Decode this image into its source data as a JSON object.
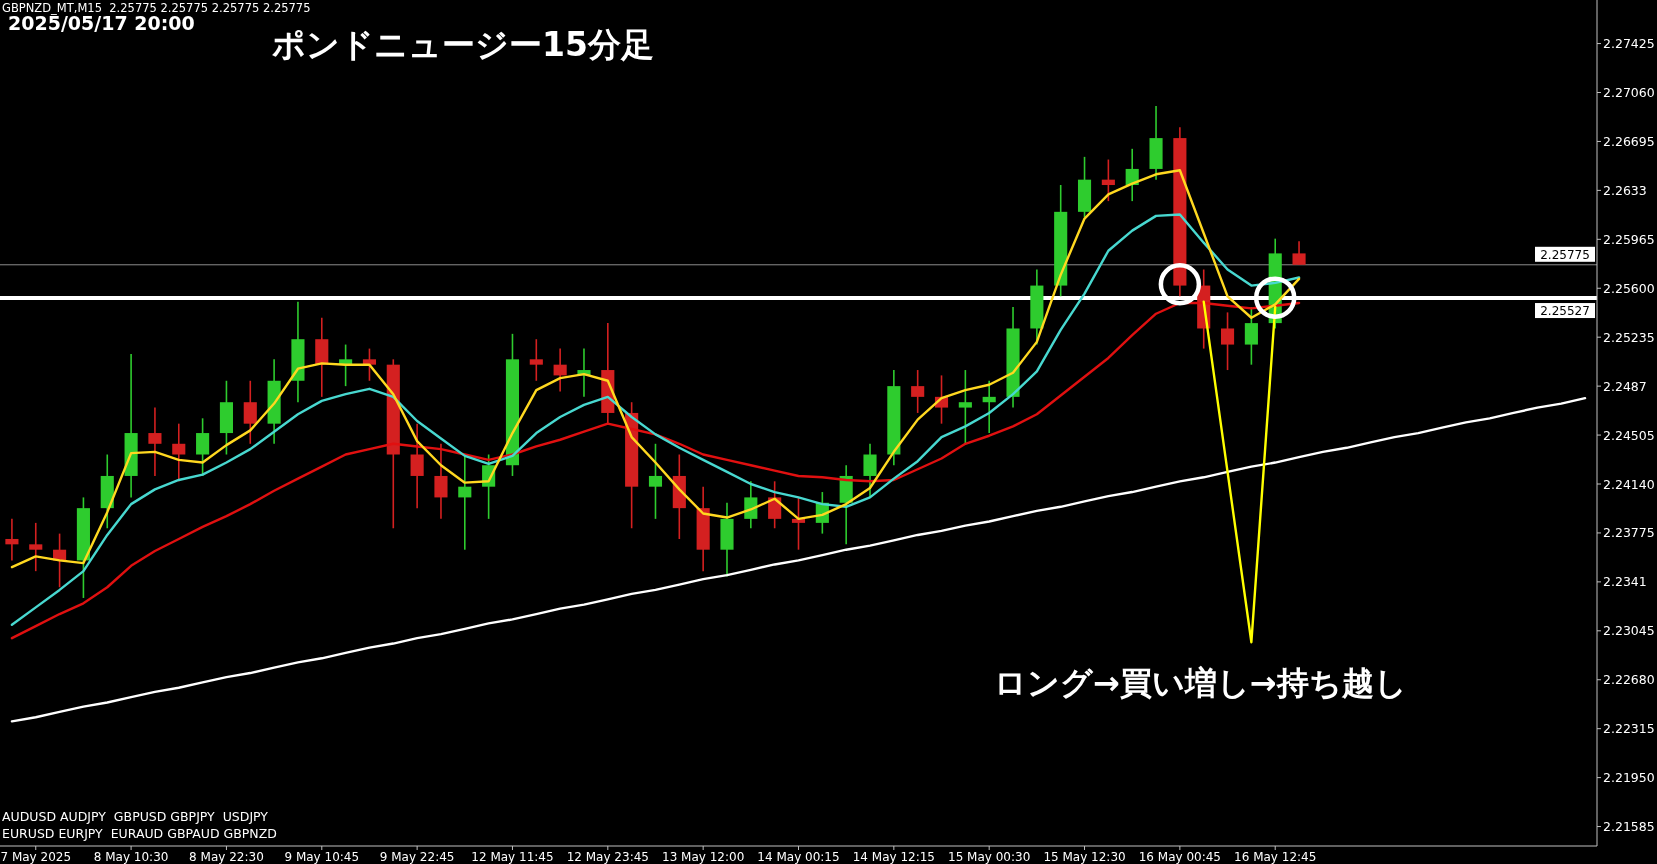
{
  "chart_data": {
    "type": "candlestick",
    "title": "ポンドニュージー15分足",
    "annotations": [
      "GBPNZD_MT,M15  2.25775 2.25775 2.25775 2.25775",
      "2025/05/17 20:00",
      "ロング→買い増し→持ち越し",
      "AUDUSD AUDJPY  GBPUSD GBPJPY  USDJPY",
      "EURUSD EURJPY  EURAUD GBPAUD GBPNZD"
    ],
    "ylim": [
      2.2144,
      2.2775
    ],
    "yticks": [
      2.21585,
      {
        "value": 2.2195,
        "label": "2.21950"
      },
      2.22315,
      {
        "value": 2.2268,
        "label": "2.22680"
      },
      2.23045,
      2.2341,
      2.23775,
      {
        "value": 2.2414,
        "label": "2.24140"
      },
      2.24505,
      2.2487,
      2.25235,
      {
        "value": 2.256,
        "label": "2.25600"
      },
      2.25965,
      2.2633,
      2.26695,
      {
        "value": 2.2706,
        "label": "2.27060"
      },
      2.27425
    ],
    "ref_lines": [
      {
        "axis": "y",
        "value": 2.25527,
        "label": "2.25527",
        "color": "#ffffff"
      },
      {
        "axis": "y",
        "value": 2.25775,
        "label": "2.25775",
        "color": "#8c8c8c"
      }
    ],
    "categories": [
      null,
      "7 May 2025",
      null,
      null,
      null,
      "8 May 10:30",
      null,
      null,
      null,
      "8 May 22:30",
      null,
      null,
      null,
      "9 May 10:45",
      null,
      null,
      null,
      "9 May 22:45",
      null,
      null,
      null,
      "12 May 11:45",
      null,
      null,
      null,
      "12 May 23:45",
      null,
      null,
      null,
      "13 May 12:00",
      null,
      null,
      null,
      "14 May 00:15",
      null,
      null,
      null,
      "14 May 12:15",
      null,
      null,
      null,
      "15 May 00:30",
      null,
      null,
      null,
      "15 May 12:30",
      null,
      null,
      null,
      "16 May 00:45",
      null,
      null,
      null,
      "16 May 12:45",
      null,
      null,
      null,
      null,
      null,
      null,
      null,
      null,
      null,
      null,
      null,
      null,
      null
    ],
    "ohlc": [
      [
        2.2373,
        2.2388,
        2.2357,
        2.2369
      ],
      [
        2.2369,
        2.2385,
        2.2349,
        2.2365
      ],
      [
        2.2365,
        2.2377,
        2.2337,
        2.2357
      ],
      [
        2.2357,
        2.2404,
        2.2329,
        2.2396
      ],
      [
        2.2396,
        2.2436,
        2.2381,
        2.242
      ],
      [
        2.242,
        2.2511,
        2.2404,
        2.2452
      ],
      [
        2.2452,
        2.2471,
        2.242,
        2.2444
      ],
      [
        2.2444,
        2.2459,
        2.2416,
        2.2436
      ],
      [
        2.2436,
        2.2463,
        2.242,
        2.2452
      ],
      [
        2.2452,
        2.2491,
        2.2436,
        2.2475
      ],
      [
        2.2475,
        2.2491,
        2.2444,
        2.2459
      ],
      [
        2.2459,
        2.2507,
        2.2444,
        2.2491
      ],
      [
        2.2491,
        2.255,
        2.2475,
        2.2522
      ],
      [
        2.2522,
        2.2538,
        2.2479,
        2.2503
      ],
      [
        2.2503,
        2.2518,
        2.2487,
        2.2507
      ],
      [
        2.2507,
        2.2515,
        2.2491,
        2.2503
      ],
      [
        2.2503,
        2.2507,
        2.2381,
        2.2436
      ],
      [
        2.2436,
        2.2459,
        2.2396,
        2.242
      ],
      [
        2.242,
        2.2444,
        2.2388,
        2.2404
      ],
      [
        2.2404,
        2.2436,
        2.2365,
        2.2412
      ],
      [
        2.2412,
        2.2436,
        2.2388,
        2.2428
      ],
      [
        2.2428,
        2.2526,
        2.242,
        2.2507
      ],
      [
        2.2507,
        2.2522,
        2.2491,
        2.2503
      ],
      [
        2.2503,
        2.2515,
        2.2483,
        2.2495
      ],
      [
        2.2495,
        2.2515,
        2.2479,
        2.2499
      ],
      [
        2.2499,
        2.2534,
        2.2459,
        2.2467
      ],
      [
        2.2467,
        2.2475,
        2.2381,
        2.2412
      ],
      [
        2.2412,
        2.2444,
        2.2388,
        2.242
      ],
      [
        2.242,
        2.2436,
        2.2373,
        2.2396
      ],
      [
        2.2396,
        2.2412,
        2.2349,
        2.2365
      ],
      [
        2.2365,
        2.24,
        2.2345,
        2.2388
      ],
      [
        2.2388,
        2.2416,
        2.2381,
        2.2404
      ],
      [
        2.2404,
        2.2416,
        2.2381,
        2.2388
      ],
      [
        2.2388,
        2.2404,
        2.2365,
        2.2385
      ],
      [
        2.2385,
        2.2408,
        2.2377,
        2.24
      ],
      [
        2.24,
        2.2428,
        2.2369,
        2.242
      ],
      [
        2.242,
        2.2444,
        2.2404,
        2.2436
      ],
      [
        2.2436,
        2.2499,
        2.2428,
        2.2487
      ],
      [
        2.2487,
        2.2499,
        2.2467,
        2.2479
      ],
      [
        2.2479,
        2.2495,
        2.2459,
        2.2471
      ],
      [
        2.2471,
        2.2499,
        2.2444,
        2.2475
      ],
      [
        2.2475,
        2.2491,
        2.2452,
        2.2479
      ],
      [
        2.2479,
        2.2546,
        2.2471,
        2.253
      ],
      [
        2.253,
        2.2574,
        2.2518,
        2.2562
      ],
      [
        2.2562,
        2.2637,
        2.2554,
        2.2617
      ],
      [
        2.2617,
        2.2658,
        2.2613,
        2.2641
      ],
      [
        2.2641,
        2.2656,
        2.2625,
        2.2637
      ],
      [
        2.2637,
        2.2664,
        2.2625,
        2.2649
      ],
      [
        2.2649,
        2.2696,
        2.2641,
        2.2672
      ],
      [
        2.2672,
        2.268,
        2.2554,
        2.2562
      ],
      [
        2.2562,
        2.2574,
        2.2515,
        2.253
      ],
      [
        2.253,
        2.2542,
        2.2499,
        2.2518
      ],
      [
        2.2518,
        2.2546,
        2.2503,
        2.2534
      ],
      [
        2.2534,
        2.2597,
        2.253,
        2.2586
      ],
      [
        2.2586,
        2.2595,
        2.25775,
        2.25775
      ],
      null,
      null,
      null,
      null,
      null,
      null,
      null,
      null,
      null,
      null,
      null,
      null
    ],
    "colors": [
      "#d42020",
      "#d42020",
      "#d42020",
      "#2ecc2e",
      "#2ecc2e",
      "#2ecc2e",
      "#d42020",
      "#d42020",
      "#2ecc2e",
      "#2ecc2e",
      "#d42020",
      "#2ecc2e",
      "#2ecc2e",
      "#d42020",
      "#2ecc2e",
      "#d42020",
      "#d42020",
      "#d42020",
      "#d42020",
      "#2ecc2e",
      "#2ecc2e",
      "#2ecc2e",
      "#d42020",
      "#d42020",
      "#2ecc2e",
      "#d42020",
      "#d42020",
      "#2ecc2e",
      "#d42020",
      "#d42020",
      "#2ecc2e",
      "#2ecc2e",
      "#d42020",
      "#d42020",
      "#2ecc2e",
      "#2ecc2e",
      "#2ecc2e",
      "#2ecc2e",
      "#d42020",
      "#d42020",
      "#2ecc2e",
      "#2ecc2e",
      "#2ecc2e",
      "#2ecc2e",
      "#2ecc2e",
      "#2ecc2e",
      "#d42020",
      "#2ecc2e",
      "#2ecc2e",
      "#d42020",
      "#d42020",
      "#d42020",
      "#2ecc2e",
      "#2ecc2e",
      "#d42020",
      null,
      null,
      null,
      null,
      null,
      null,
      null,
      null,
      null,
      null,
      null,
      null
    ],
    "series": [
      {
        "type": "line",
        "color": "#e01010",
        "values": [
          2.2299,
          2.2308,
          2.2317,
          2.2325,
          2.2337,
          2.2353,
          2.2364,
          2.2373,
          2.2382,
          2.239,
          2.2399,
          2.2409,
          2.2418,
          2.2427,
          2.2436,
          2.244,
          2.2444,
          2.2442,
          2.244,
          2.2436,
          2.2432,
          2.2436,
          2.2442,
          2.2447,
          2.2453,
          2.2459,
          2.2455,
          2.2451,
          2.2444,
          2.2436,
          2.2432,
          2.2428,
          2.2424,
          2.242,
          2.2419,
          2.2417,
          2.2416,
          2.2417,
          2.2425,
          2.2433,
          2.2444,
          2.245,
          2.2457,
          2.2466,
          2.248,
          2.2494,
          2.2508,
          2.2525,
          2.2541,
          2.2549,
          2.2549,
          2.2547,
          2.2545,
          2.2547,
          2.2549,
          null,
          null,
          null,
          null,
          null,
          null,
          null,
          null,
          null,
          null,
          null,
          null
        ]
      },
      {
        "type": "line",
        "color": "#48d8d0",
        "values": [
          2.2309,
          2.2322,
          2.2335,
          2.2349,
          2.2376,
          2.2399,
          2.241,
          2.2417,
          2.2421,
          2.243,
          2.244,
          2.2453,
          2.2466,
          2.2476,
          2.2481,
          2.2485,
          2.2479,
          2.2461,
          2.2448,
          2.2435,
          2.2429,
          2.2435,
          2.2452,
          2.2464,
          2.2473,
          2.2479,
          2.2464,
          2.2451,
          2.2441,
          2.2432,
          2.2423,
          2.2414,
          2.2408,
          2.2404,
          2.2399,
          2.2397,
          2.2404,
          2.2418,
          2.2431,
          2.2449,
          2.2457,
          2.2467,
          2.2481,
          2.2498,
          2.2529,
          2.2556,
          2.2588,
          2.2603,
          2.2614,
          2.2615,
          2.2594,
          2.2574,
          2.2562,
          2.2564,
          2.2568,
          null,
          null,
          null,
          null,
          null,
          null,
          null,
          null,
          null,
          null,
          null,
          null
        ]
      },
      {
        "type": "line",
        "color": "#ffd820",
        "values": [
          2.2352,
          2.236,
          2.2357,
          2.2355,
          2.2393,
          2.2437,
          2.2438,
          2.2432,
          2.243,
          2.2443,
          2.2454,
          2.2474,
          2.25,
          2.2504,
          2.2503,
          2.2503,
          2.2481,
          2.2446,
          2.2428,
          2.2415,
          2.2416,
          2.2452,
          2.2484,
          2.2493,
          2.2496,
          2.2491,
          2.2449,
          2.243,
          2.241,
          2.2392,
          2.2389,
          2.2395,
          2.2403,
          2.2388,
          2.2391,
          2.2399,
          2.2411,
          2.2438,
          2.2462,
          2.2478,
          2.2484,
          2.2488,
          2.2497,
          2.252,
          2.257,
          2.2612,
          2.263,
          2.2638,
          2.2645,
          2.2648,
          2.2601,
          2.2554,
          2.2538,
          2.2548,
          2.2567,
          null,
          null,
          null,
          null,
          null,
          null,
          null,
          null,
          null,
          null,
          null,
          null
        ]
      },
      {
        "type": "line",
        "color": "#ffffff",
        "values": [
          2.2237,
          2.224,
          2.2244,
          2.2248,
          2.2251,
          2.2255,
          2.2259,
          2.2262,
          2.2266,
          2.227,
          2.2273,
          2.2277,
          2.2281,
          2.2284,
          2.2288,
          2.2292,
          2.2295,
          2.2299,
          2.2302,
          2.2306,
          2.231,
          2.2313,
          2.2317,
          2.2321,
          2.2324,
          2.2328,
          2.2332,
          2.2335,
          2.2339,
          2.2343,
          2.2346,
          2.235,
          2.2354,
          2.2357,
          2.2361,
          2.2365,
          2.2368,
          2.2372,
          2.2376,
          2.2379,
          2.2383,
          2.2386,
          2.239,
          2.2394,
          2.2397,
          2.2401,
          2.2405,
          2.2408,
          2.2412,
          2.2416,
          2.2419,
          2.2423,
          2.2427,
          2.243,
          2.2434,
          2.2438,
          2.2441,
          2.2445,
          2.2449,
          2.2452,
          2.2456,
          2.246,
          2.2463,
          2.2467,
          2.2471,
          2.2474,
          2.2478
        ]
      },
      {
        "type": "line",
        "color": "#ffff00",
        "values": [
          null,
          null,
          null,
          null,
          null,
          null,
          null,
          null,
          null,
          null,
          null,
          null,
          null,
          null,
          null,
          null,
          null,
          null,
          null,
          null,
          null,
          null,
          null,
          null,
          null,
          null,
          null,
          null,
          null,
          null,
          null,
          null,
          null,
          null,
          null,
          null,
          null,
          null,
          null,
          null,
          null,
          null,
          null,
          null,
          null,
          null,
          null,
          null,
          null,
          null,
          2.255,
          2.2423,
          2.2296,
          2.2546,
          null,
          null,
          null,
          null,
          null,
          null,
          null,
          null,
          null,
          null,
          null,
          null,
          null
        ]
      },
      {
        "type": "scatter",
        "color": "#ffffff",
        "marker": "circle",
        "values": [
          null,
          null,
          null,
          null,
          null,
          null,
          null,
          null,
          null,
          null,
          null,
          null,
          null,
          null,
          null,
          null,
          null,
          null,
          null,
          null,
          null,
          null,
          null,
          null,
          null,
          null,
          null,
          null,
          null,
          null,
          null,
          null,
          null,
          null,
          null,
          null,
          null,
          null,
          null,
          null,
          null,
          null,
          null,
          null,
          null,
          null,
          null,
          null,
          null,
          2.2563,
          null,
          null,
          null,
          2.2553,
          null,
          null,
          null,
          null,
          null,
          null,
          null,
          null,
          null,
          null,
          null,
          null,
          null
        ]
      }
    ]
  }
}
